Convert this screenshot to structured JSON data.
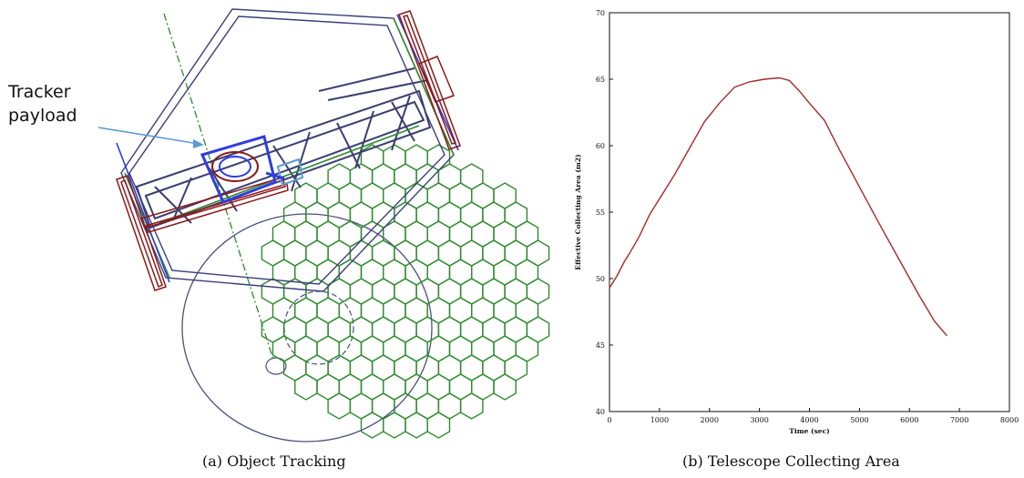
{
  "panel_a": {
    "annotation_line1": "Tracker",
    "annotation_line2": "payload",
    "caption": "(a) Object Tracking",
    "colors": {
      "frame": "#3b3f7a",
      "red_bars": "#8b1a1a",
      "green_struct": "#2e8b2e",
      "blue_payload": "#2f3de0",
      "arrow": "#5b9bd5"
    }
  },
  "panel_b": {
    "caption": "(b) Telescope Collecting Area"
  },
  "chart_data": {
    "type": "line",
    "title": "",
    "xlabel": "Time (sec)",
    "ylabel": "Effective Collecting Area (m2)",
    "xlim": [
      0,
      8000
    ],
    "ylim": [
      40,
      70
    ],
    "xticks": [
      0,
      1000,
      2000,
      3000,
      4000,
      5000,
      6000,
      7000,
      8000
    ],
    "yticks": [
      40,
      45,
      50,
      55,
      60,
      65,
      70
    ],
    "grid": false,
    "line_color": "#a52a2a",
    "series": [
      {
        "x": [
          0,
          150,
          300,
          400,
          600,
          800,
          1000,
          1300,
          1600,
          1900,
          2200,
          2500,
          2800,
          3100,
          3400,
          3600,
          3800,
          4000,
          4300,
          4600,
          5000,
          5400,
          5800,
          6200,
          6500,
          6750
        ],
        "y": [
          49.3,
          50.2,
          51.3,
          51.9,
          53.2,
          54.8,
          56.0,
          57.8,
          59.8,
          61.8,
          63.2,
          64.4,
          64.8,
          65.0,
          65.1,
          64.9,
          64.1,
          63.2,
          61.9,
          59.7,
          56.9,
          54.1,
          51.4,
          48.7,
          46.8,
          45.7
        ]
      }
    ]
  }
}
